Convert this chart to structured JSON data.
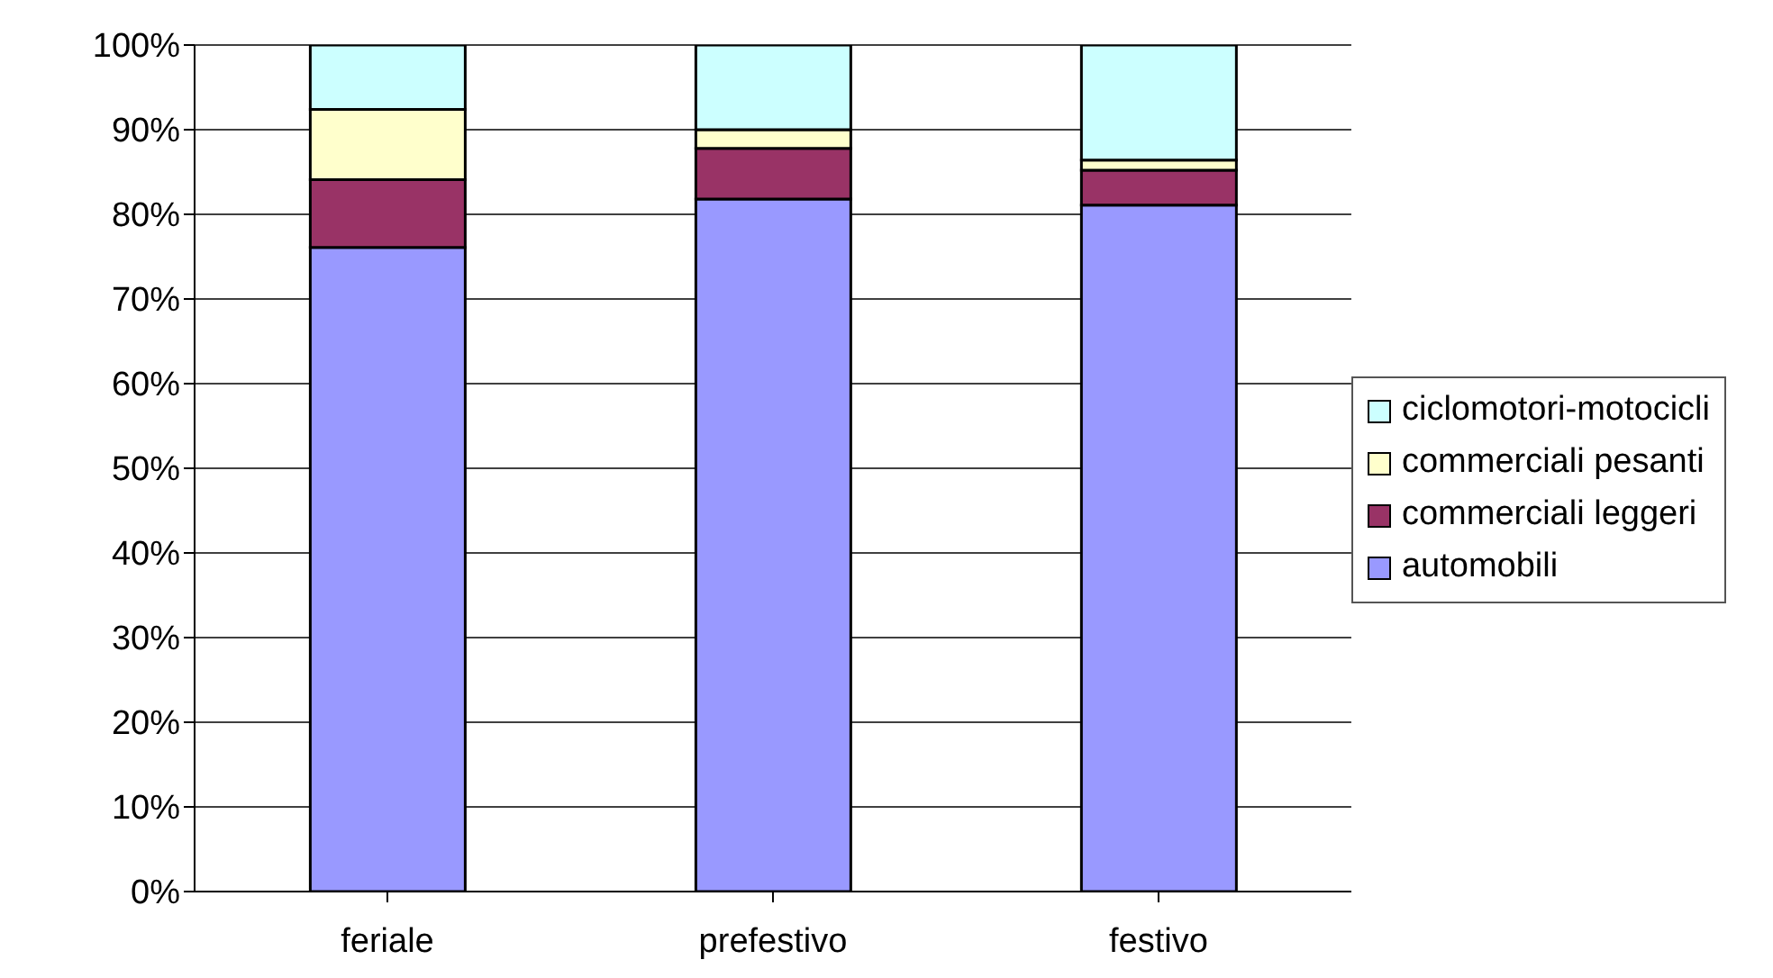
{
  "chart_data": {
    "type": "bar",
    "stacked": true,
    "categories": [
      "feriale",
      "prefestivo",
      "festivo"
    ],
    "series": [
      {
        "name": "automobili",
        "color": "#9999ff",
        "values": [
          76.1,
          81.8,
          81.1
        ]
      },
      {
        "name": "commerciali leggeri",
        "color": "#993366",
        "values": [
          8.0,
          6.0,
          4.1
        ]
      },
      {
        "name": "commerciali pesanti",
        "color": "#ffffcc",
        "values": [
          8.3,
          2.2,
          1.2
        ]
      },
      {
        "name": "ciclomotori-motocicli",
        "color": "#ccffff",
        "values": [
          7.6,
          10.0,
          13.6
        ]
      }
    ],
    "ylim": [
      0,
      100
    ],
    "yticks": [
      {
        "value": 0,
        "label": "0%"
      },
      {
        "value": 10,
        "label": "10%"
      },
      {
        "value": 20,
        "label": "20%"
      },
      {
        "value": 30,
        "label": "30%"
      },
      {
        "value": 40,
        "label": "40%"
      },
      {
        "value": 50,
        "label": "50%"
      },
      {
        "value": 60,
        "label": "60%"
      },
      {
        "value": 70,
        "label": "70%"
      },
      {
        "value": 80,
        "label": "80%"
      },
      {
        "value": 90,
        "label": "90%"
      },
      {
        "value": 100,
        "label": "100%"
      }
    ],
    "grid": "y",
    "legend": "right"
  }
}
